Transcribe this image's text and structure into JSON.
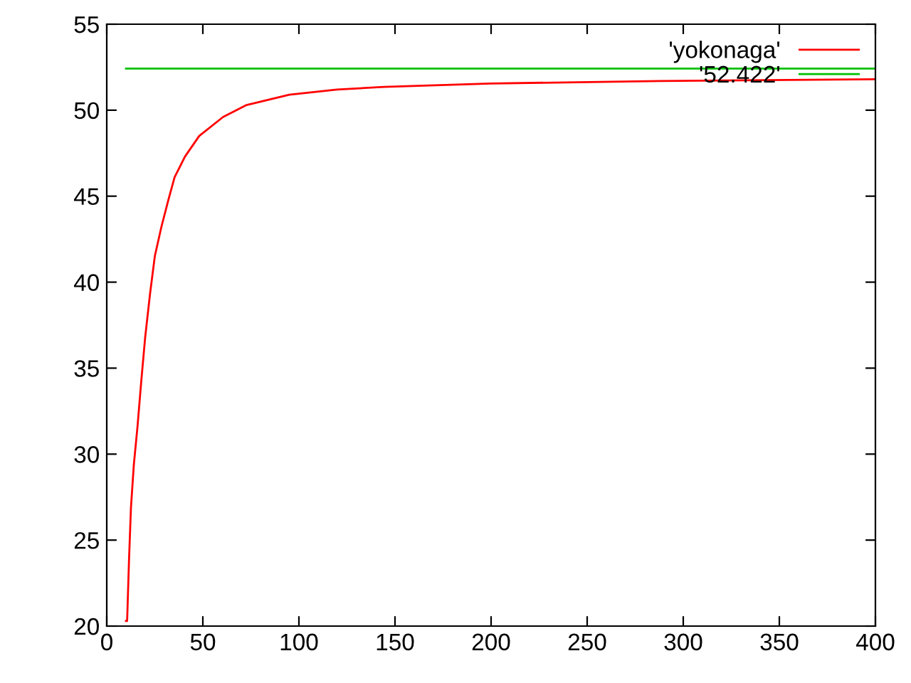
{
  "chart_data": {
    "type": "line",
    "xlim": [
      0,
      400
    ],
    "ylim": [
      20,
      55
    ],
    "xticks": [
      0,
      50,
      100,
      150,
      200,
      250,
      300,
      350,
      400
    ],
    "yticks": [
      20,
      25,
      30,
      35,
      40,
      45,
      50,
      55
    ],
    "grid": false,
    "legend": "top right",
    "marker": "none",
    "line_style": "solid",
    "series": [
      {
        "name": "'yokonaga'",
        "color": "#ff0000",
        "x": [
          10,
          10.6,
          11.6,
          12.6,
          14.1,
          16,
          18,
          20,
          22.5,
          25,
          28.4,
          32.1,
          35.3,
          40.7,
          48.1,
          60.5,
          72.8,
          95,
          119.8,
          144.4,
          200,
          287.6,
          400
        ],
        "values": [
          20.3,
          20.3,
          23.9,
          26.9,
          29.4,
          31.6,
          34.3,
          36.8,
          39.3,
          41.5,
          43.2,
          44.8,
          46.1,
          47.3,
          48.5,
          49.6,
          50.3,
          50.9,
          51.2,
          51.35,
          51.55,
          51.7,
          51.8
        ]
      },
      {
        "name": "'52.422'",
        "color": "#00c000",
        "x": [
          10,
          400
        ],
        "values": [
          52.422,
          52.422
        ]
      }
    ]
  }
}
